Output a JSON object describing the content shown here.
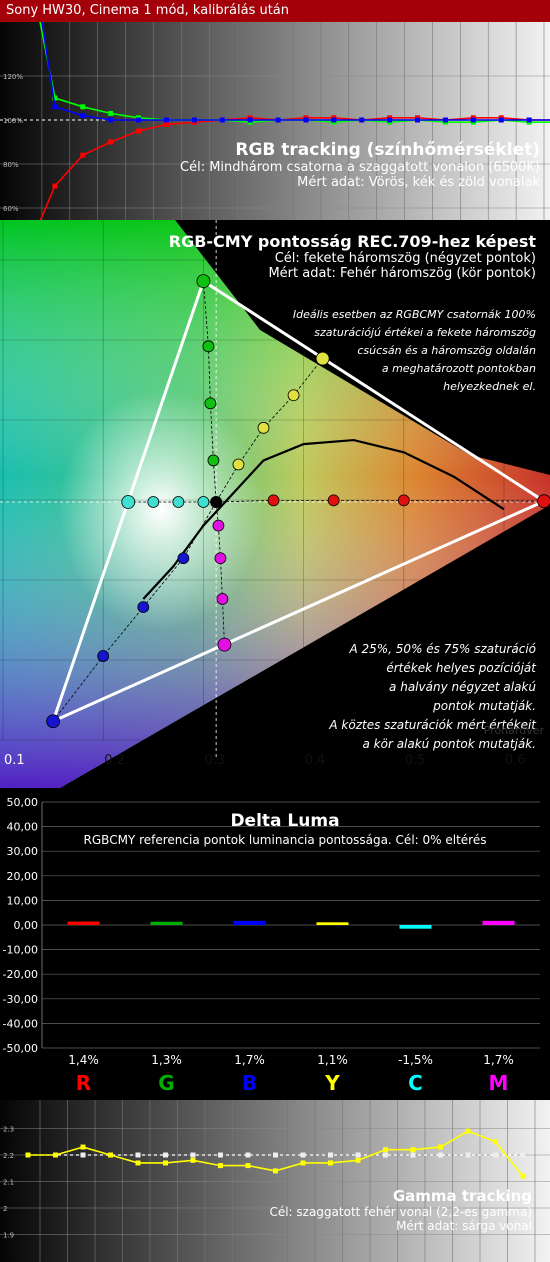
{
  "header": {
    "title": "Sony HW30, Cinema 1 mód, kalibrálás után"
  },
  "rgb_tracking": {
    "title": "RGB tracking (színhőmérséklet)",
    "line1": "Cél: Mindhárom csatorna a szaggatott vonalon (6500K)",
    "line2": "Mért adat: Vörös, kék és zöld vonalak",
    "colors": {
      "red": "#ff0000",
      "green": "#00ff00",
      "blue": "#0000ff"
    }
  },
  "cie": {
    "title": "RGB-CMY pontosság REC.709-hez képest",
    "line1": "Cél: fekete háromszög (négyzet pontok)",
    "line2": "Mért adat: Fehér háromszög (kör pontok)",
    "note_top": [
      "Ideális esetben az RGBCMY csatornák 100%",
      "szaturációjú értékei a fekete háromszög",
      "csúcsán  és a háromszög oldalán",
      "a meghatározott pontokban",
      "helyezkednek el."
    ],
    "note_bottom": [
      "A 25%, 50% és 75% szaturáció",
      "értékek helyes pozícióját",
      "a halvány négyzet alakú",
      "pontok mutatják.",
      "A köztes szaturációk mért értékeit",
      "a kör alakú pontok mutatják."
    ],
    "watermark": "Prohardver"
  },
  "chart_data": [
    {
      "type": "line",
      "title": "RGB tracking (színhőmérséklet)",
      "xlabel": "",
      "ylabel": "",
      "ylim": [
        55,
        130
      ],
      "y_ticks": [
        "120%",
        "100%",
        "80%",
        "60%"
      ],
      "x": [
        5,
        10,
        15,
        20,
        25,
        30,
        35,
        40,
        45,
        50,
        55,
        60,
        65,
        70,
        75,
        80,
        85,
        90,
        95,
        100
      ],
      "series": [
        {
          "name": "Vörös",
          "color": "#ff0000",
          "values": [
            40,
            70,
            84,
            90,
            95,
            98,
            99,
            100,
            101,
            100,
            101,
            101,
            100,
            101,
            101,
            100,
            101,
            101,
            100,
            100
          ]
        },
        {
          "name": "Zöld",
          "color": "#00ff00",
          "values": [
            175,
            110,
            106,
            103,
            101,
            100,
            100,
            100,
            99,
            100,
            100,
            99,
            100,
            99,
            100,
            99,
            99,
            100,
            99,
            99
          ]
        },
        {
          "name": "Kék",
          "color": "#0000ff",
          "values": [
            190,
            106,
            102,
            100,
            100,
            100,
            100,
            100,
            100,
            100,
            100,
            100,
            100,
            100,
            100,
            100,
            100,
            100,
            100,
            100
          ]
        }
      ]
    },
    {
      "type": "scatter",
      "title": "RGB-CMY pontosság REC.709-hez képest",
      "xlabel": "",
      "ylabel": "",
      "x_ticks": [
        "0.1",
        "0.2",
        "0.3",
        "0.4",
        "0.5",
        "0.6"
      ],
      "xlim": [
        0.1,
        0.62
      ],
      "ylim": [
        0.04,
        0.62
      ],
      "reference_triangle": [
        [
          0.64,
          0.33
        ],
        [
          0.3,
          0.6
        ],
        [
          0.15,
          0.06
        ]
      ],
      "white_point": [
        0.3127,
        0.329
      ],
      "measured": {
        "red": [
          [
            0.64,
            0.33
          ],
          [
            0.5,
            0.331
          ],
          [
            0.43,
            0.331
          ],
          [
            0.37,
            0.331
          ]
        ],
        "green": [
          [
            0.3,
            0.6
          ],
          [
            0.305,
            0.52
          ],
          [
            0.307,
            0.45
          ],
          [
            0.31,
            0.38
          ]
        ],
        "blue": [
          [
            0.15,
            0.06
          ],
          [
            0.2,
            0.14
          ],
          [
            0.24,
            0.2
          ],
          [
            0.28,
            0.26
          ]
        ],
        "cyan": [
          [
            0.225,
            0.329
          ],
          [
            0.25,
            0.329
          ],
          [
            0.275,
            0.329
          ],
          [
            0.3,
            0.329
          ]
        ],
        "magenta": [
          [
            0.321,
            0.154
          ],
          [
            0.319,
            0.21
          ],
          [
            0.317,
            0.26
          ],
          [
            0.315,
            0.3
          ]
        ],
        "yellow": [
          [
            0.419,
            0.505
          ],
          [
            0.39,
            0.46
          ],
          [
            0.36,
            0.42
          ],
          [
            0.335,
            0.375
          ]
        ]
      },
      "blackbody_curve": [
        [
          0.24,
          0.21
        ],
        [
          0.27,
          0.25
        ],
        [
          0.3,
          0.3
        ],
        [
          0.33,
          0.34
        ],
        [
          0.36,
          0.38
        ],
        [
          0.4,
          0.4
        ],
        [
          0.45,
          0.405
        ],
        [
          0.5,
          0.39
        ],
        [
          0.55,
          0.36
        ],
        [
          0.6,
          0.32
        ]
      ]
    },
    {
      "type": "bar",
      "title": "Delta Luma",
      "subtitle": "RGBCMY referencia pontok luminancia pontossága. Cél: 0% eltérés",
      "xlabel": "",
      "ylabel": "",
      "ylim": [
        -50,
        50
      ],
      "y_ticks": [
        "50,00",
        "40,00",
        "30,00",
        "20,00",
        "10,00",
        "0,00",
        "-10,00",
        "-20,00",
        "-30,00",
        "-40,00",
        "-50,00"
      ],
      "categories": [
        "R",
        "G",
        "B",
        "Y",
        "C",
        "M"
      ],
      "values": [
        1.4,
        1.3,
        1.7,
        1.1,
        -1.5,
        1.7
      ],
      "value_labels": [
        "1,4%",
        "1,3%",
        "1,7%",
        "1,1%",
        "-1,5%",
        "1,7%"
      ],
      "colors": [
        "#ff0000",
        "#00b000",
        "#0000ff",
        "#ffff00",
        "#00ffff",
        "#ff00ff"
      ]
    },
    {
      "type": "line",
      "title": "Gamma tracking",
      "line1": "Cél: szaggatott fehér vonal (2,2-es gamma)",
      "line2": "Mért adat: sárga vonal",
      "xlabel": "",
      "ylabel": "",
      "ylim": [
        1.85,
        2.35
      ],
      "y_ticks": [
        "2.3",
        "2.2",
        "2.1",
        "2",
        "1.9"
      ],
      "x": [
        5,
        10,
        15,
        20,
        25,
        30,
        35,
        40,
        45,
        50,
        55,
        60,
        65,
        70,
        75,
        80,
        85,
        90,
        95
      ],
      "series": [
        {
          "name": "Mért",
          "color": "#ffff00",
          "values": [
            2.2,
            2.2,
            2.23,
            2.2,
            2.17,
            2.17,
            2.18,
            2.16,
            2.16,
            2.14,
            2.17,
            2.17,
            2.18,
            2.22,
            2.22,
            2.23,
            2.29,
            2.25,
            2.12
          ]
        },
        {
          "name": "Cél",
          "color": "#ffffff",
          "values": [
            2.2,
            2.2,
            2.2,
            2.2,
            2.2,
            2.2,
            2.2,
            2.2,
            2.2,
            2.2,
            2.2,
            2.2,
            2.2,
            2.2,
            2.2,
            2.2,
            2.2,
            2.2,
            2.2
          ]
        }
      ]
    }
  ]
}
